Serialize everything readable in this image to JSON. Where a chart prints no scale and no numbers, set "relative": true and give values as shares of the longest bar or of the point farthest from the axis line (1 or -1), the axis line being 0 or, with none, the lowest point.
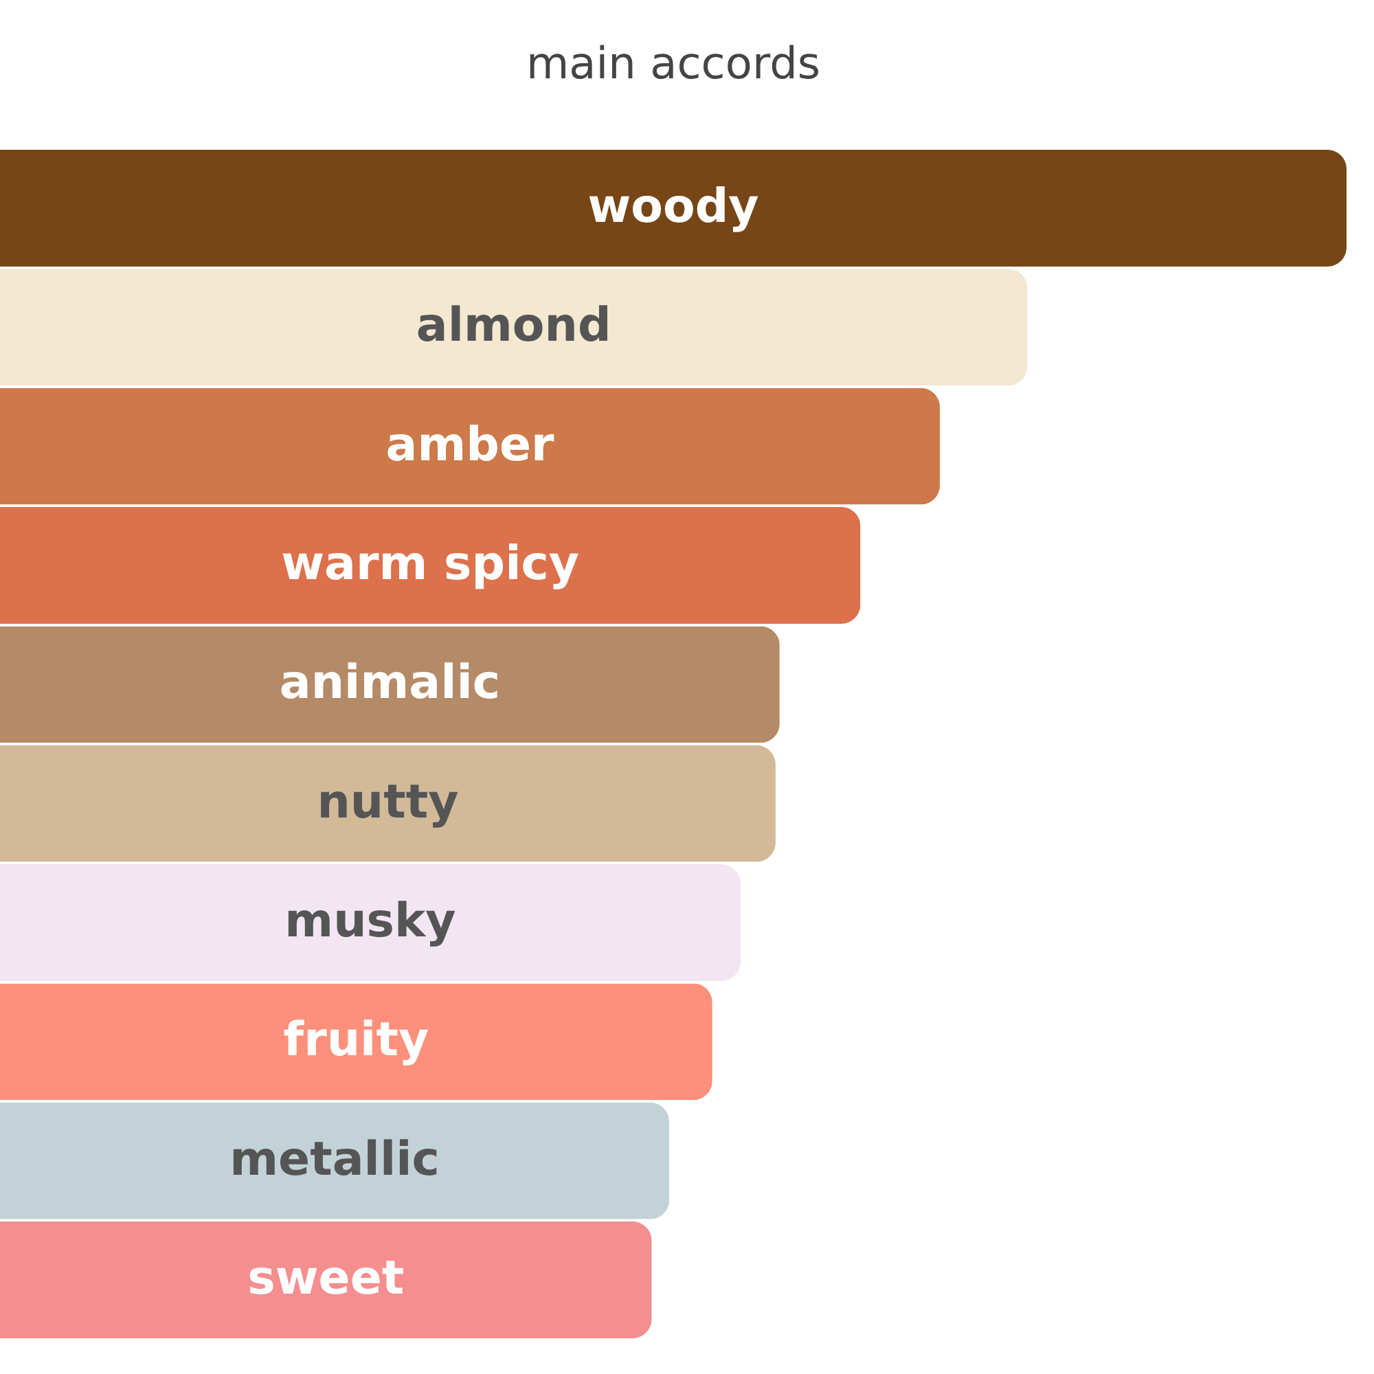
{
  "chart_data": {
    "type": "bar",
    "orientation": "horizontal",
    "relative": true,
    "title": "main accords",
    "categories": [
      "woody",
      "almond",
      "amber",
      "warm spicy",
      "animalic",
      "nutty",
      "musky",
      "fruity",
      "metallic",
      "sweet"
    ],
    "values": [
      1,
      0.763,
      0.698,
      0.639,
      0.579,
      0.576,
      0.55,
      0.529,
      0.497,
      0.484
    ],
    "colors": [
      "#774616",
      "#f3e8d0",
      "#cd794a",
      "#dc714c",
      "#b58a66",
      "#d2ba98",
      "#f1e6f2",
      "#fc907b",
      "#c3d2d7",
      "#f48e8f"
    ]
  }
}
